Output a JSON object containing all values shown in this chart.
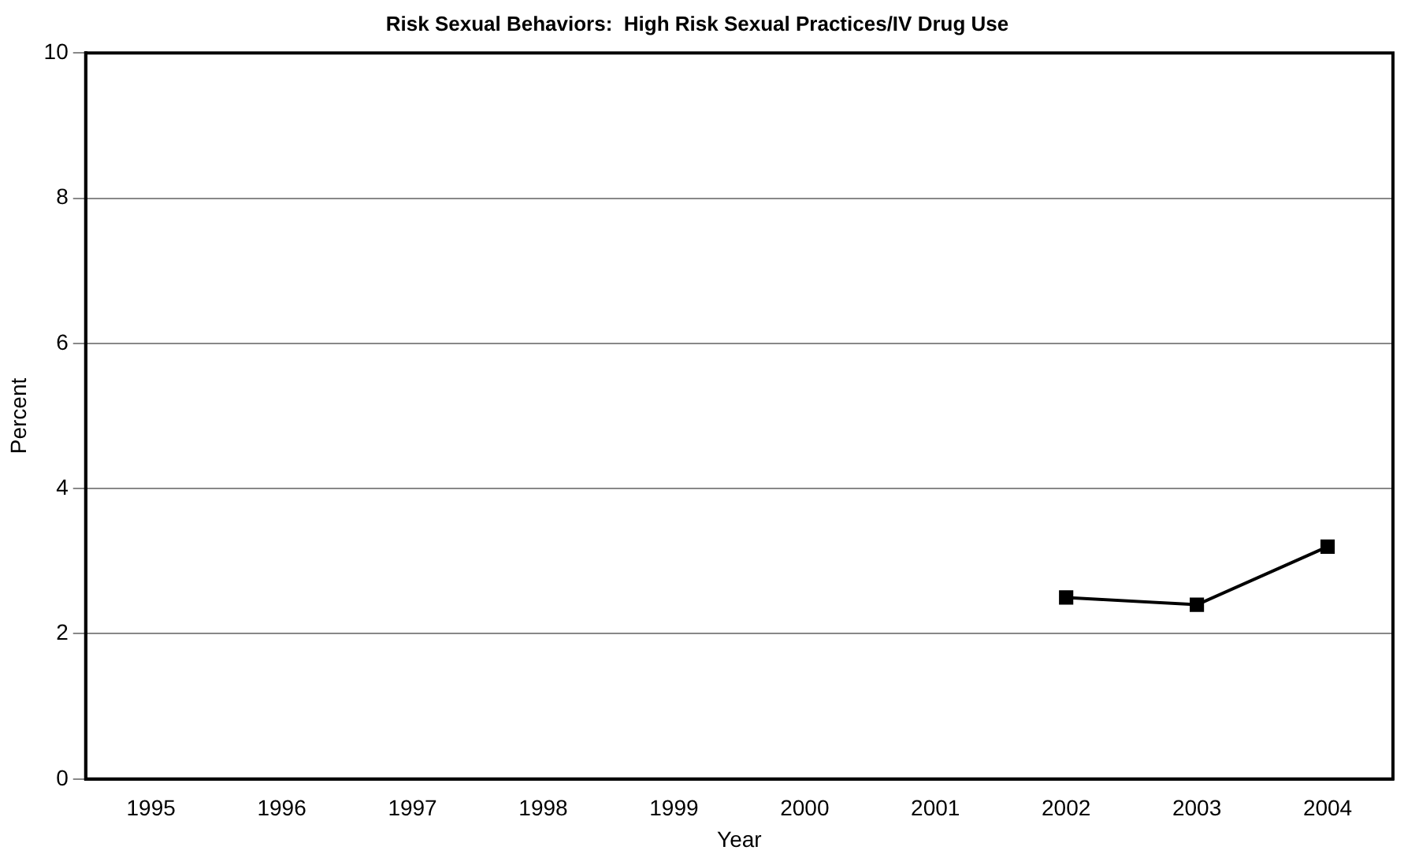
{
  "chart_data": {
    "type": "line",
    "title": "Risk Sexual Behaviors:  High Risk Sexual Practices/IV Drug Use",
    "xlabel": "Year",
    "ylabel": "Percent",
    "categories": [
      "1995",
      "1996",
      "1997",
      "1998",
      "1999",
      "2000",
      "2001",
      "2002",
      "2003",
      "2004"
    ],
    "series": [
      {
        "color": "#000000",
        "values": [
          null,
          null,
          null,
          null,
          null,
          null,
          null,
          2.5,
          2.4,
          3.2
        ]
      }
    ],
    "ylim": [
      0,
      10
    ],
    "yticks": [
      0,
      2,
      4,
      6,
      8,
      10
    ],
    "grid": "y",
    "legend": false,
    "marker": "square",
    "line_style": "solid"
  }
}
